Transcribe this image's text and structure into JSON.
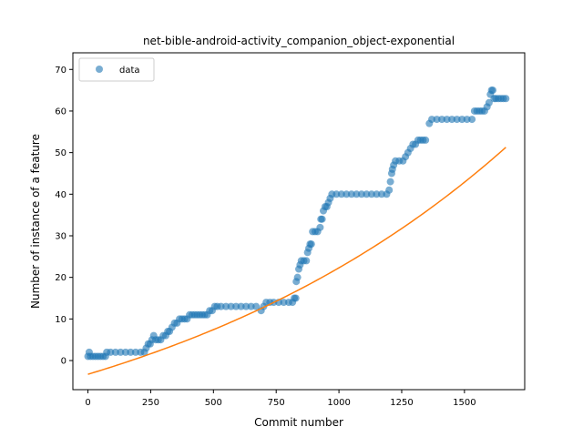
{
  "chart_data": {
    "type": "scatter",
    "title": "net-bible-android-activity_companion_object-exponential",
    "xlabel": "Commit number",
    "ylabel": "Number of instance of a feature",
    "xlim": [
      -60,
      1740
    ],
    "ylim": [
      -7,
      74
    ],
    "xticks": [
      0,
      250,
      500,
      750,
      1000,
      1250,
      1500
    ],
    "yticks": [
      0,
      10,
      20,
      30,
      40,
      50,
      60,
      70
    ],
    "grid": false,
    "legend": {
      "placement": "top-left",
      "entries": [
        "data"
      ]
    },
    "colors": {
      "data": "#1f77b4",
      "fit": "#ff7f0e"
    },
    "series": [
      {
        "name": "data",
        "kind": "scatter",
        "points": [
          [
            0,
            1
          ],
          [
            5,
            2
          ],
          [
            10,
            1
          ],
          [
            20,
            1
          ],
          [
            30,
            1
          ],
          [
            40,
            1
          ],
          [
            50,
            1
          ],
          [
            60,
            1
          ],
          [
            70,
            1
          ],
          [
            75,
            2
          ],
          [
            90,
            2
          ],
          [
            110,
            2
          ],
          [
            130,
            2
          ],
          [
            150,
            2
          ],
          [
            170,
            2
          ],
          [
            190,
            2
          ],
          [
            210,
            2
          ],
          [
            225,
            2
          ],
          [
            232,
            3
          ],
          [
            240,
            4
          ],
          [
            248,
            4
          ],
          [
            255,
            5
          ],
          [
            262,
            6
          ],
          [
            270,
            5
          ],
          [
            280,
            5
          ],
          [
            290,
            5
          ],
          [
            300,
            6
          ],
          [
            310,
            6
          ],
          [
            318,
            7
          ],
          [
            325,
            7
          ],
          [
            335,
            8
          ],
          [
            345,
            9
          ],
          [
            355,
            9
          ],
          [
            365,
            10
          ],
          [
            375,
            10
          ],
          [
            385,
            10
          ],
          [
            395,
            10
          ],
          [
            405,
            11
          ],
          [
            415,
            11
          ],
          [
            425,
            11
          ],
          [
            435,
            11
          ],
          [
            445,
            11
          ],
          [
            455,
            11
          ],
          [
            465,
            11
          ],
          [
            475,
            11
          ],
          [
            485,
            12
          ],
          [
            495,
            12
          ],
          [
            505,
            13
          ],
          [
            515,
            13
          ],
          [
            530,
            13
          ],
          [
            550,
            13
          ],
          [
            570,
            13
          ],
          [
            590,
            13
          ],
          [
            610,
            13
          ],
          [
            630,
            13
          ],
          [
            650,
            13
          ],
          [
            670,
            13
          ],
          [
            690,
            12
          ],
          [
            700,
            13
          ],
          [
            710,
            14
          ],
          [
            725,
            14
          ],
          [
            740,
            14
          ],
          [
            760,
            14
          ],
          [
            780,
            14
          ],
          [
            800,
            14
          ],
          [
            815,
            14
          ],
          [
            822,
            15
          ],
          [
            828,
            15
          ],
          [
            830,
            19
          ],
          [
            835,
            20
          ],
          [
            840,
            22
          ],
          [
            845,
            23
          ],
          [
            850,
            24
          ],
          [
            860,
            24
          ],
          [
            870,
            24
          ],
          [
            875,
            26
          ],
          [
            880,
            27
          ],
          [
            885,
            28
          ],
          [
            890,
            28
          ],
          [
            895,
            31
          ],
          [
            905,
            31
          ],
          [
            915,
            31
          ],
          [
            925,
            32
          ],
          [
            928,
            34
          ],
          [
            933,
            34
          ],
          [
            938,
            36
          ],
          [
            945,
            37
          ],
          [
            952,
            37
          ],
          [
            958,
            38
          ],
          [
            965,
            39
          ],
          [
            972,
            40
          ],
          [
            990,
            40
          ],
          [
            1010,
            40
          ],
          [
            1030,
            40
          ],
          [
            1050,
            40
          ],
          [
            1070,
            40
          ],
          [
            1090,
            40
          ],
          [
            1110,
            40
          ],
          [
            1130,
            40
          ],
          [
            1150,
            40
          ],
          [
            1170,
            40
          ],
          [
            1190,
            40
          ],
          [
            1200,
            41
          ],
          [
            1205,
            43
          ],
          [
            1210,
            45
          ],
          [
            1213,
            46
          ],
          [
            1218,
            47
          ],
          [
            1225,
            48
          ],
          [
            1240,
            48
          ],
          [
            1255,
            48
          ],
          [
            1265,
            49
          ],
          [
            1275,
            50
          ],
          [
            1285,
            51
          ],
          [
            1295,
            52
          ],
          [
            1305,
            52
          ],
          [
            1315,
            53
          ],
          [
            1325,
            53
          ],
          [
            1335,
            53
          ],
          [
            1345,
            53
          ],
          [
            1360,
            57
          ],
          [
            1370,
            58
          ],
          [
            1390,
            58
          ],
          [
            1410,
            58
          ],
          [
            1430,
            58
          ],
          [
            1450,
            58
          ],
          [
            1470,
            58
          ],
          [
            1490,
            58
          ],
          [
            1510,
            58
          ],
          [
            1530,
            58
          ],
          [
            1540,
            60
          ],
          [
            1550,
            60
          ],
          [
            1560,
            60
          ],
          [
            1570,
            60
          ],
          [
            1580,
            60
          ],
          [
            1590,
            61
          ],
          [
            1598,
            62
          ],
          [
            1603,
            64
          ],
          [
            1608,
            65
          ],
          [
            1613,
            65
          ],
          [
            1618,
            63
          ],
          [
            1625,
            63
          ],
          [
            1635,
            63
          ],
          [
            1645,
            63
          ],
          [
            1655,
            63
          ],
          [
            1665,
            63
          ]
        ]
      },
      {
        "name": "",
        "kind": "line",
        "model": {
          "form": "a*exp(b*x)+c",
          "a": 27.9,
          "b": 0.000651,
          "c": -31.2
        },
        "x_range": [
          0,
          1665
        ]
      }
    ]
  }
}
